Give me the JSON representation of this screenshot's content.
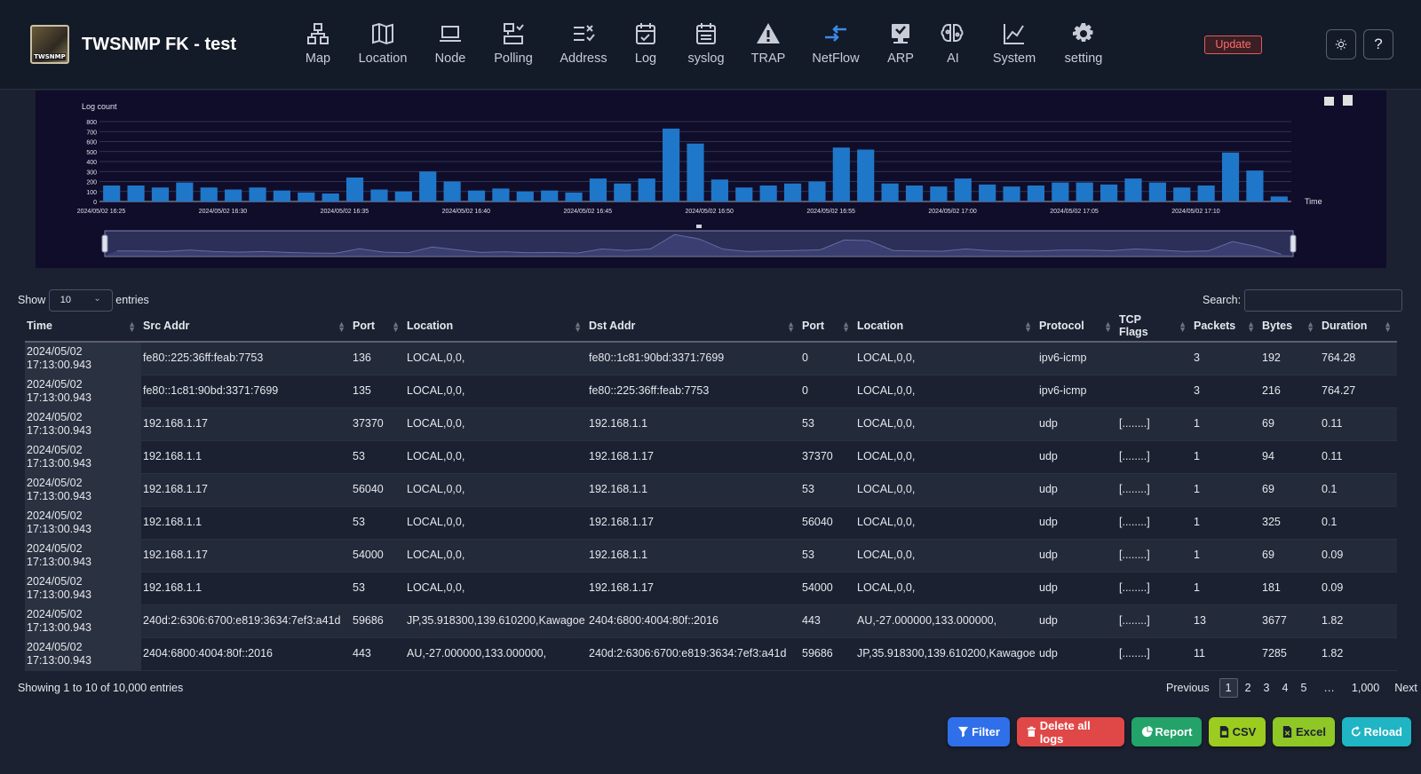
{
  "brand": {
    "logo_text": "TWSNMP",
    "title": "TWSNMP FK - test"
  },
  "nav": [
    {
      "label": "Map",
      "icon": "network-icon"
    },
    {
      "label": "Location",
      "icon": "map-icon"
    },
    {
      "label": "Node",
      "icon": "laptop-icon"
    },
    {
      "label": "Polling",
      "icon": "polling-icon"
    },
    {
      "label": "Address",
      "icon": "address-list-icon"
    },
    {
      "label": "Log",
      "icon": "calendar-check-icon"
    },
    {
      "label": "syslog",
      "icon": "calendar-list-icon"
    },
    {
      "label": "TRAP",
      "icon": "warning-icon"
    },
    {
      "label": "NetFlow",
      "icon": "arrows-exchange-icon"
    },
    {
      "label": "ARP",
      "icon": "monitor-icon"
    },
    {
      "label": "AI",
      "icon": "brain-icon"
    },
    {
      "label": "System",
      "icon": "line-chart-icon"
    },
    {
      "label": "setting",
      "icon": "gear-icon"
    }
  ],
  "header": {
    "update_label": "Update",
    "theme_icon": "sun-icon",
    "help_label": "?"
  },
  "chart_data": {
    "type": "bar",
    "ylabel": "Log count",
    "xlabel": "Time",
    "ylim": [
      0,
      800
    ],
    "yticks": [
      0,
      100,
      200,
      300,
      400,
      500,
      600,
      700,
      800
    ],
    "xtick_labels": [
      "2024/05/02 16:25",
      "2024/05/02 16:30",
      "2024/05/02 16:35",
      "2024/05/02 16:40",
      "2024/05/02 16:45",
      "2024/05/02 16:50",
      "2024/05/02 16:55",
      "2024/05/02 17:00",
      "2024/05/02 17:05",
      "2024/05/02 17:10"
    ],
    "values": [
      160,
      160,
      140,
      190,
      140,
      120,
      140,
      110,
      90,
      80,
      240,
      120,
      100,
      300,
      200,
      110,
      130,
      100,
      110,
      90,
      230,
      180,
      230,
      730,
      580,
      220,
      140,
      160,
      180,
      200,
      540,
      520,
      180,
      160,
      150,
      230,
      170,
      150,
      160,
      190,
      190,
      170,
      230,
      190,
      140,
      160,
      490,
      310,
      50
    ],
    "grid": true,
    "legend": "none"
  },
  "controls": {
    "show_label": "Show",
    "entries_value": "10",
    "entries_label": "entries",
    "search_label": "Search:"
  },
  "table": {
    "columns": [
      "Time",
      "Src Addr",
      "Port",
      "Location",
      "Dst Addr",
      "Port",
      "Location",
      "Protocol",
      "TCP Flags",
      "Packets",
      "Bytes",
      "Duration"
    ],
    "rows": [
      [
        "2024/05/02 17:13:00.943",
        "fe80::225:36ff:feab:7753",
        "136",
        "LOCAL,0,0,",
        "fe80::1c81:90bd:3371:7699",
        "0",
        "LOCAL,0,0,",
        "ipv6-icmp",
        "",
        "3",
        "192",
        "764.28"
      ],
      [
        "2024/05/02 17:13:00.943",
        "fe80::1c81:90bd:3371:7699",
        "135",
        "LOCAL,0,0,",
        "fe80::225:36ff:feab:7753",
        "0",
        "LOCAL,0,0,",
        "ipv6-icmp",
        "",
        "3",
        "216",
        "764.27"
      ],
      [
        "2024/05/02 17:13:00.943",
        "192.168.1.17",
        "37370",
        "LOCAL,0,0,",
        "192.168.1.1",
        "53",
        "LOCAL,0,0,",
        "udp",
        "[........]",
        "1",
        "69",
        "0.11"
      ],
      [
        "2024/05/02 17:13:00.943",
        "192.168.1.1",
        "53",
        "LOCAL,0,0,",
        "192.168.1.17",
        "37370",
        "LOCAL,0,0,",
        "udp",
        "[........]",
        "1",
        "94",
        "0.11"
      ],
      [
        "2024/05/02 17:13:00.943",
        "192.168.1.17",
        "56040",
        "LOCAL,0,0,",
        "192.168.1.1",
        "53",
        "LOCAL,0,0,",
        "udp",
        "[........]",
        "1",
        "69",
        "0.1"
      ],
      [
        "2024/05/02 17:13:00.943",
        "192.168.1.1",
        "53",
        "LOCAL,0,0,",
        "192.168.1.17",
        "56040",
        "LOCAL,0,0,",
        "udp",
        "[........]",
        "1",
        "325",
        "0.1"
      ],
      [
        "2024/05/02 17:13:00.943",
        "192.168.1.17",
        "54000",
        "LOCAL,0,0,",
        "192.168.1.1",
        "53",
        "LOCAL,0,0,",
        "udp",
        "[........]",
        "1",
        "69",
        "0.09"
      ],
      [
        "2024/05/02 17:13:00.943",
        "192.168.1.1",
        "53",
        "LOCAL,0,0,",
        "192.168.1.17",
        "54000",
        "LOCAL,0,0,",
        "udp",
        "[........]",
        "1",
        "181",
        "0.09"
      ],
      [
        "2024/05/02 17:13:00.943",
        "240d:2:6306:6700:e819:3634:7ef3:a41d",
        "59686",
        "JP,35.918300,139.610200,Kawagoe",
        "2404:6800:4004:80f::2016",
        "443",
        "AU,-27.000000,133.000000,",
        "udp",
        "[........]",
        "13",
        "3677",
        "1.82"
      ],
      [
        "2024/05/02 17:13:00.943",
        "2404:6800:4004:80f::2016",
        "443",
        "AU,-27.000000,133.000000,",
        "240d:2:6306:6700:e819:3634:7ef3:a41d",
        "59686",
        "JP,35.918300,139.610200,Kawagoe",
        "udp",
        "[........]",
        "11",
        "7285",
        "1.82"
      ]
    ]
  },
  "footer": {
    "info": "Showing 1 to 10 of 10,000 entries",
    "pagination": [
      "Previous",
      "1",
      "2",
      "3",
      "4",
      "5",
      "…",
      "1,000",
      "Next"
    ],
    "current_page": "1"
  },
  "actions": [
    {
      "label": "Filter",
      "icon": "filter-icon",
      "color": "#2f6fea"
    },
    {
      "label": "Delete all logs",
      "icon": "trash-icon",
      "color": "#e04848"
    },
    {
      "label": "Report",
      "icon": "pie-chart-icon",
      "color": "#23a36a"
    },
    {
      "label": "CSV",
      "icon": "file-csv-icon",
      "color": "#9ccc1f"
    },
    {
      "label": "Excel",
      "icon": "file-excel-icon",
      "color": "#8fc726"
    },
    {
      "label": "Reload",
      "icon": "recycle-icon",
      "color": "#1fb5c4"
    }
  ],
  "colors": {
    "bar": "#1f77c9",
    "accent": "#3b8be8",
    "panel": "#100d2b"
  }
}
